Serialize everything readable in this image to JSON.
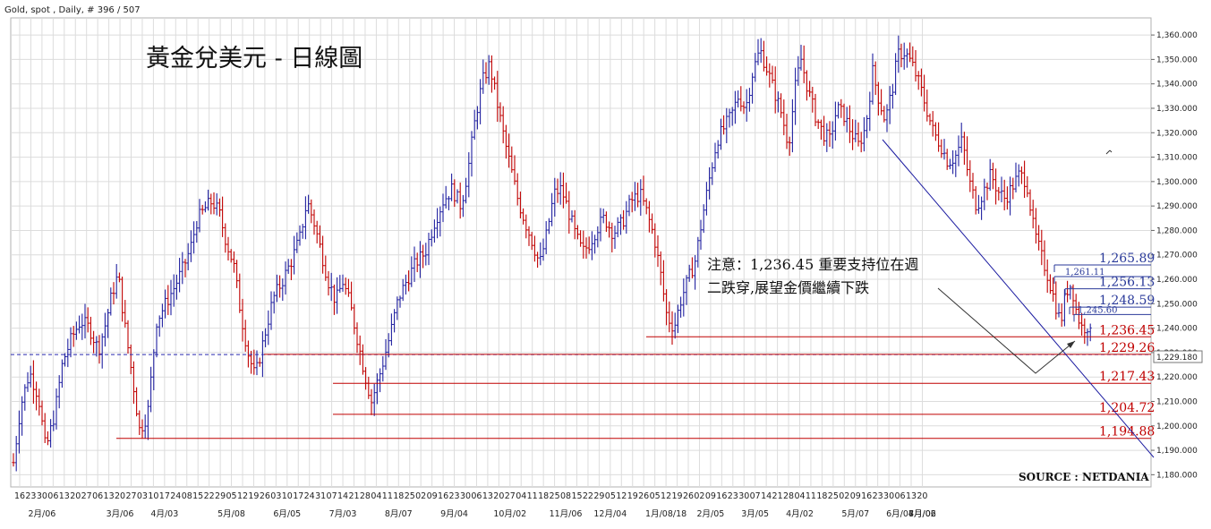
{
  "header": {
    "instrument_label": "Gold, spot , Daily, # 396 / 507"
  },
  "chart_title": "黃金兌美元 - 日線圖",
  "annotation": {
    "line1": "注意：1,236.45 重要支持位在週",
    "line2": "二跌穿,展望金價繼續下跌"
  },
  "source_label": "SOURCE : NETDANIA",
  "colors": {
    "up": "#2020a0",
    "down": "#c00000",
    "support": "#c00000",
    "resistance": "#2a3a9a",
    "grid": "#dcdcdc",
    "trendline": "#1a1aa0"
  },
  "chart_data": {
    "type": "ohlc",
    "title": "黃金兌美元 - 日線圖",
    "instrument": "Gold, spot , Daily, # 396 / 507",
    "ylim": [
      1175,
      1367
    ],
    "y_ticks": [
      "1,360.000",
      "1,350.000",
      "1,340.000",
      "1,330.000",
      "1,320.000",
      "1,310.000",
      "1,300.000",
      "1,290.000",
      "1,280.000",
      "1,270.000",
      "1,260.000",
      "1,250.000",
      "1,240.000",
      "1,230.000",
      "1,220.000",
      "1,210.000",
      "1,200.000",
      "1,190.000",
      "1,180.000"
    ],
    "y_tick_values": [
      1360,
      1350,
      1340,
      1330,
      1320,
      1310,
      1300,
      1290,
      1280,
      1270,
      1260,
      1250,
      1240,
      1230,
      1220,
      1210,
      1200,
      1190,
      1180
    ],
    "x_day_labels": [
      "16",
      "23",
      "30",
      "06",
      "13",
      "20",
      "27",
      "06",
      "13",
      "20",
      "27",
      "03",
      "10",
      "17",
      "24",
      "08",
      "15",
      "22",
      "29",
      "05",
      "12",
      "19",
      "26",
      "03",
      "10",
      "17",
      "24",
      "31",
      "07",
      "14",
      "21",
      "28",
      "04",
      "11",
      "18",
      "25",
      "02",
      "09",
      "16",
      "23",
      "30",
      "06",
      "13",
      "20",
      "27",
      "04",
      "11",
      "18",
      "25",
      "08",
      "15",
      "22",
      "29",
      "05",
      "12",
      "19",
      "26",
      "05",
      "12",
      "19",
      "26",
      "02",
      "09",
      "16",
      "23",
      "30",
      "07",
      "14",
      "21",
      "28",
      "04",
      "11",
      "18",
      "25",
      "02",
      "09",
      "16",
      "23",
      "30",
      "06",
      "13",
      "20"
    ],
    "x_month_labels": [
      "2月/06",
      "3月/06",
      "4月/03",
      "5月/08",
      "6月/05",
      "7月/03",
      "8月/07",
      "9月/04",
      "10月/02",
      "11月/06",
      "12月/04",
      "1月/08/18",
      "2月/05",
      "3月/05",
      "4月/02",
      "5月/07",
      "6月/04",
      "7月/02",
      "8月/06"
    ],
    "current_price_label": "1,229.180",
    "current_price": 1229.18,
    "support_levels": [
      {
        "value": 1236.45,
        "label": "1,236.45"
      },
      {
        "value": 1229.26,
        "label": "1,229.26"
      },
      {
        "value": 1217.43,
        "label": "1,217.43"
      },
      {
        "value": 1204.72,
        "label": "1,204.72"
      },
      {
        "value": 1194.88,
        "label": "1,194.88"
      }
    ],
    "resistance_levels": [
      {
        "value": 1265.89,
        "label": "1,265.89"
      },
      {
        "value": 1261.11,
        "label": "1,261.11"
      },
      {
        "value": 1256.13,
        "label": "1,256.13"
      },
      {
        "value": 1248.59,
        "label": "1,248.59"
      },
      {
        "value": 1245.6,
        "label": "1,245.60"
      }
    ],
    "price_path": [
      [
        0,
        1185
      ],
      [
        8,
        1208
      ],
      [
        18,
        1222
      ],
      [
        28,
        1212
      ],
      [
        36,
        1190
      ],
      [
        46,
        1205
      ],
      [
        55,
        1226
      ],
      [
        65,
        1236
      ],
      [
        75,
        1243
      ],
      [
        85,
        1240
      ],
      [
        95,
        1231
      ],
      [
        103,
        1242
      ],
      [
        110,
        1254
      ],
      [
        117,
        1262
      ],
      [
        124,
        1242
      ],
      [
        132,
        1222
      ],
      [
        141,
        1198
      ],
      [
        150,
        1205
      ],
      [
        160,
        1243
      ],
      [
        170,
        1250
      ],
      [
        180,
        1257
      ],
      [
        190,
        1265
      ],
      [
        198,
        1273
      ],
      [
        205,
        1284
      ],
      [
        214,
        1289
      ],
      [
        222,
        1292
      ],
      [
        230,
        1287
      ],
      [
        238,
        1275
      ],
      [
        246,
        1266
      ],
      [
        254,
        1246
      ],
      [
        262,
        1230
      ],
      [
        270,
        1220
      ],
      [
        280,
        1236
      ],
      [
        290,
        1252
      ],
      [
        300,
        1259
      ],
      [
        310,
        1267
      ],
      [
        320,
        1277
      ],
      [
        328,
        1292
      ],
      [
        336,
        1283
      ],
      [
        344,
        1271
      ],
      [
        352,
        1259
      ],
      [
        360,
        1251
      ],
      [
        368,
        1259
      ],
      [
        376,
        1250
      ],
      [
        384,
        1236
      ],
      [
        392,
        1222
      ],
      [
        400,
        1210
      ],
      [
        410,
        1222
      ],
      [
        420,
        1236
      ],
      [
        430,
        1252
      ],
      [
        440,
        1260
      ],
      [
        450,
        1267
      ],
      [
        460,
        1271
      ],
      [
        470,
        1283
      ],
      [
        480,
        1292
      ],
      [
        490,
        1297
      ],
      [
        500,
        1290
      ],
      [
        508,
        1305
      ],
      [
        516,
        1326
      ],
      [
        524,
        1341
      ],
      [
        532,
        1348
      ],
      [
        540,
        1333
      ],
      [
        548,
        1318
      ],
      [
        556,
        1305
      ],
      [
        564,
        1292
      ],
      [
        572,
        1283
      ],
      [
        580,
        1275
      ],
      [
        588,
        1266
      ],
      [
        596,
        1279
      ],
      [
        604,
        1295
      ],
      [
        612,
        1297
      ],
      [
        620,
        1288
      ],
      [
        628,
        1278
      ],
      [
        636,
        1271
      ],
      [
        644,
        1275
      ],
      [
        652,
        1281
      ],
      [
        660,
        1285
      ],
      [
        670,
        1279
      ],
      [
        680,
        1283
      ],
      [
        690,
        1292
      ],
      [
        700,
        1295
      ],
      [
        708,
        1287
      ],
      [
        716,
        1277
      ],
      [
        724,
        1260
      ],
      [
        730,
        1245
      ],
      [
        738,
        1240
      ],
      [
        746,
        1252
      ],
      [
        754,
        1260
      ],
      [
        762,
        1268
      ],
      [
        770,
        1286
      ],
      [
        778,
        1302
      ],
      [
        786,
        1317
      ],
      [
        794,
        1322
      ],
      [
        802,
        1327
      ],
      [
        810,
        1335
      ],
      [
        818,
        1330
      ],
      [
        826,
        1345
      ],
      [
        834,
        1354
      ],
      [
        842,
        1346
      ],
      [
        850,
        1337
      ],
      [
        858,
        1328
      ],
      [
        866,
        1315
      ],
      [
        874,
        1340
      ],
      [
        880,
        1350
      ],
      [
        888,
        1337
      ],
      [
        896,
        1327
      ],
      [
        904,
        1320
      ],
      [
        912,
        1317
      ],
      [
        920,
        1330
      ],
      [
        928,
        1327
      ],
      [
        936,
        1320
      ],
      [
        944,
        1315
      ],
      [
        952,
        1322
      ],
      [
        960,
        1345
      ],
      [
        966,
        1335
      ],
      [
        974,
        1325
      ],
      [
        982,
        1338
      ],
      [
        988,
        1352
      ],
      [
        996,
        1353
      ],
      [
        1004,
        1348
      ],
      [
        1012,
        1340
      ],
      [
        1020,
        1330
      ],
      [
        1028,
        1320
      ],
      [
        1036,
        1315
      ],
      [
        1044,
        1308
      ],
      [
        1052,
        1310
      ],
      [
        1060,
        1317
      ],
      [
        1068,
        1300
      ],
      [
        1076,
        1290
      ],
      [
        1084,
        1296
      ],
      [
        1092,
        1303
      ],
      [
        1100,
        1296
      ],
      [
        1108,
        1293
      ],
      [
        1116,
        1298
      ],
      [
        1124,
        1303
      ],
      [
        1132,
        1300
      ],
      [
        1140,
        1280
      ],
      [
        1148,
        1270
      ],
      [
        1156,
        1261
      ],
      [
        1164,
        1250
      ],
      [
        1170,
        1242
      ],
      [
        1176,
        1255
      ],
      [
        1182,
        1258
      ],
      [
        1188,
        1246
      ],
      [
        1194,
        1240
      ],
      [
        1200,
        1241
      ],
      [
        1206,
        1234
      ]
    ]
  }
}
